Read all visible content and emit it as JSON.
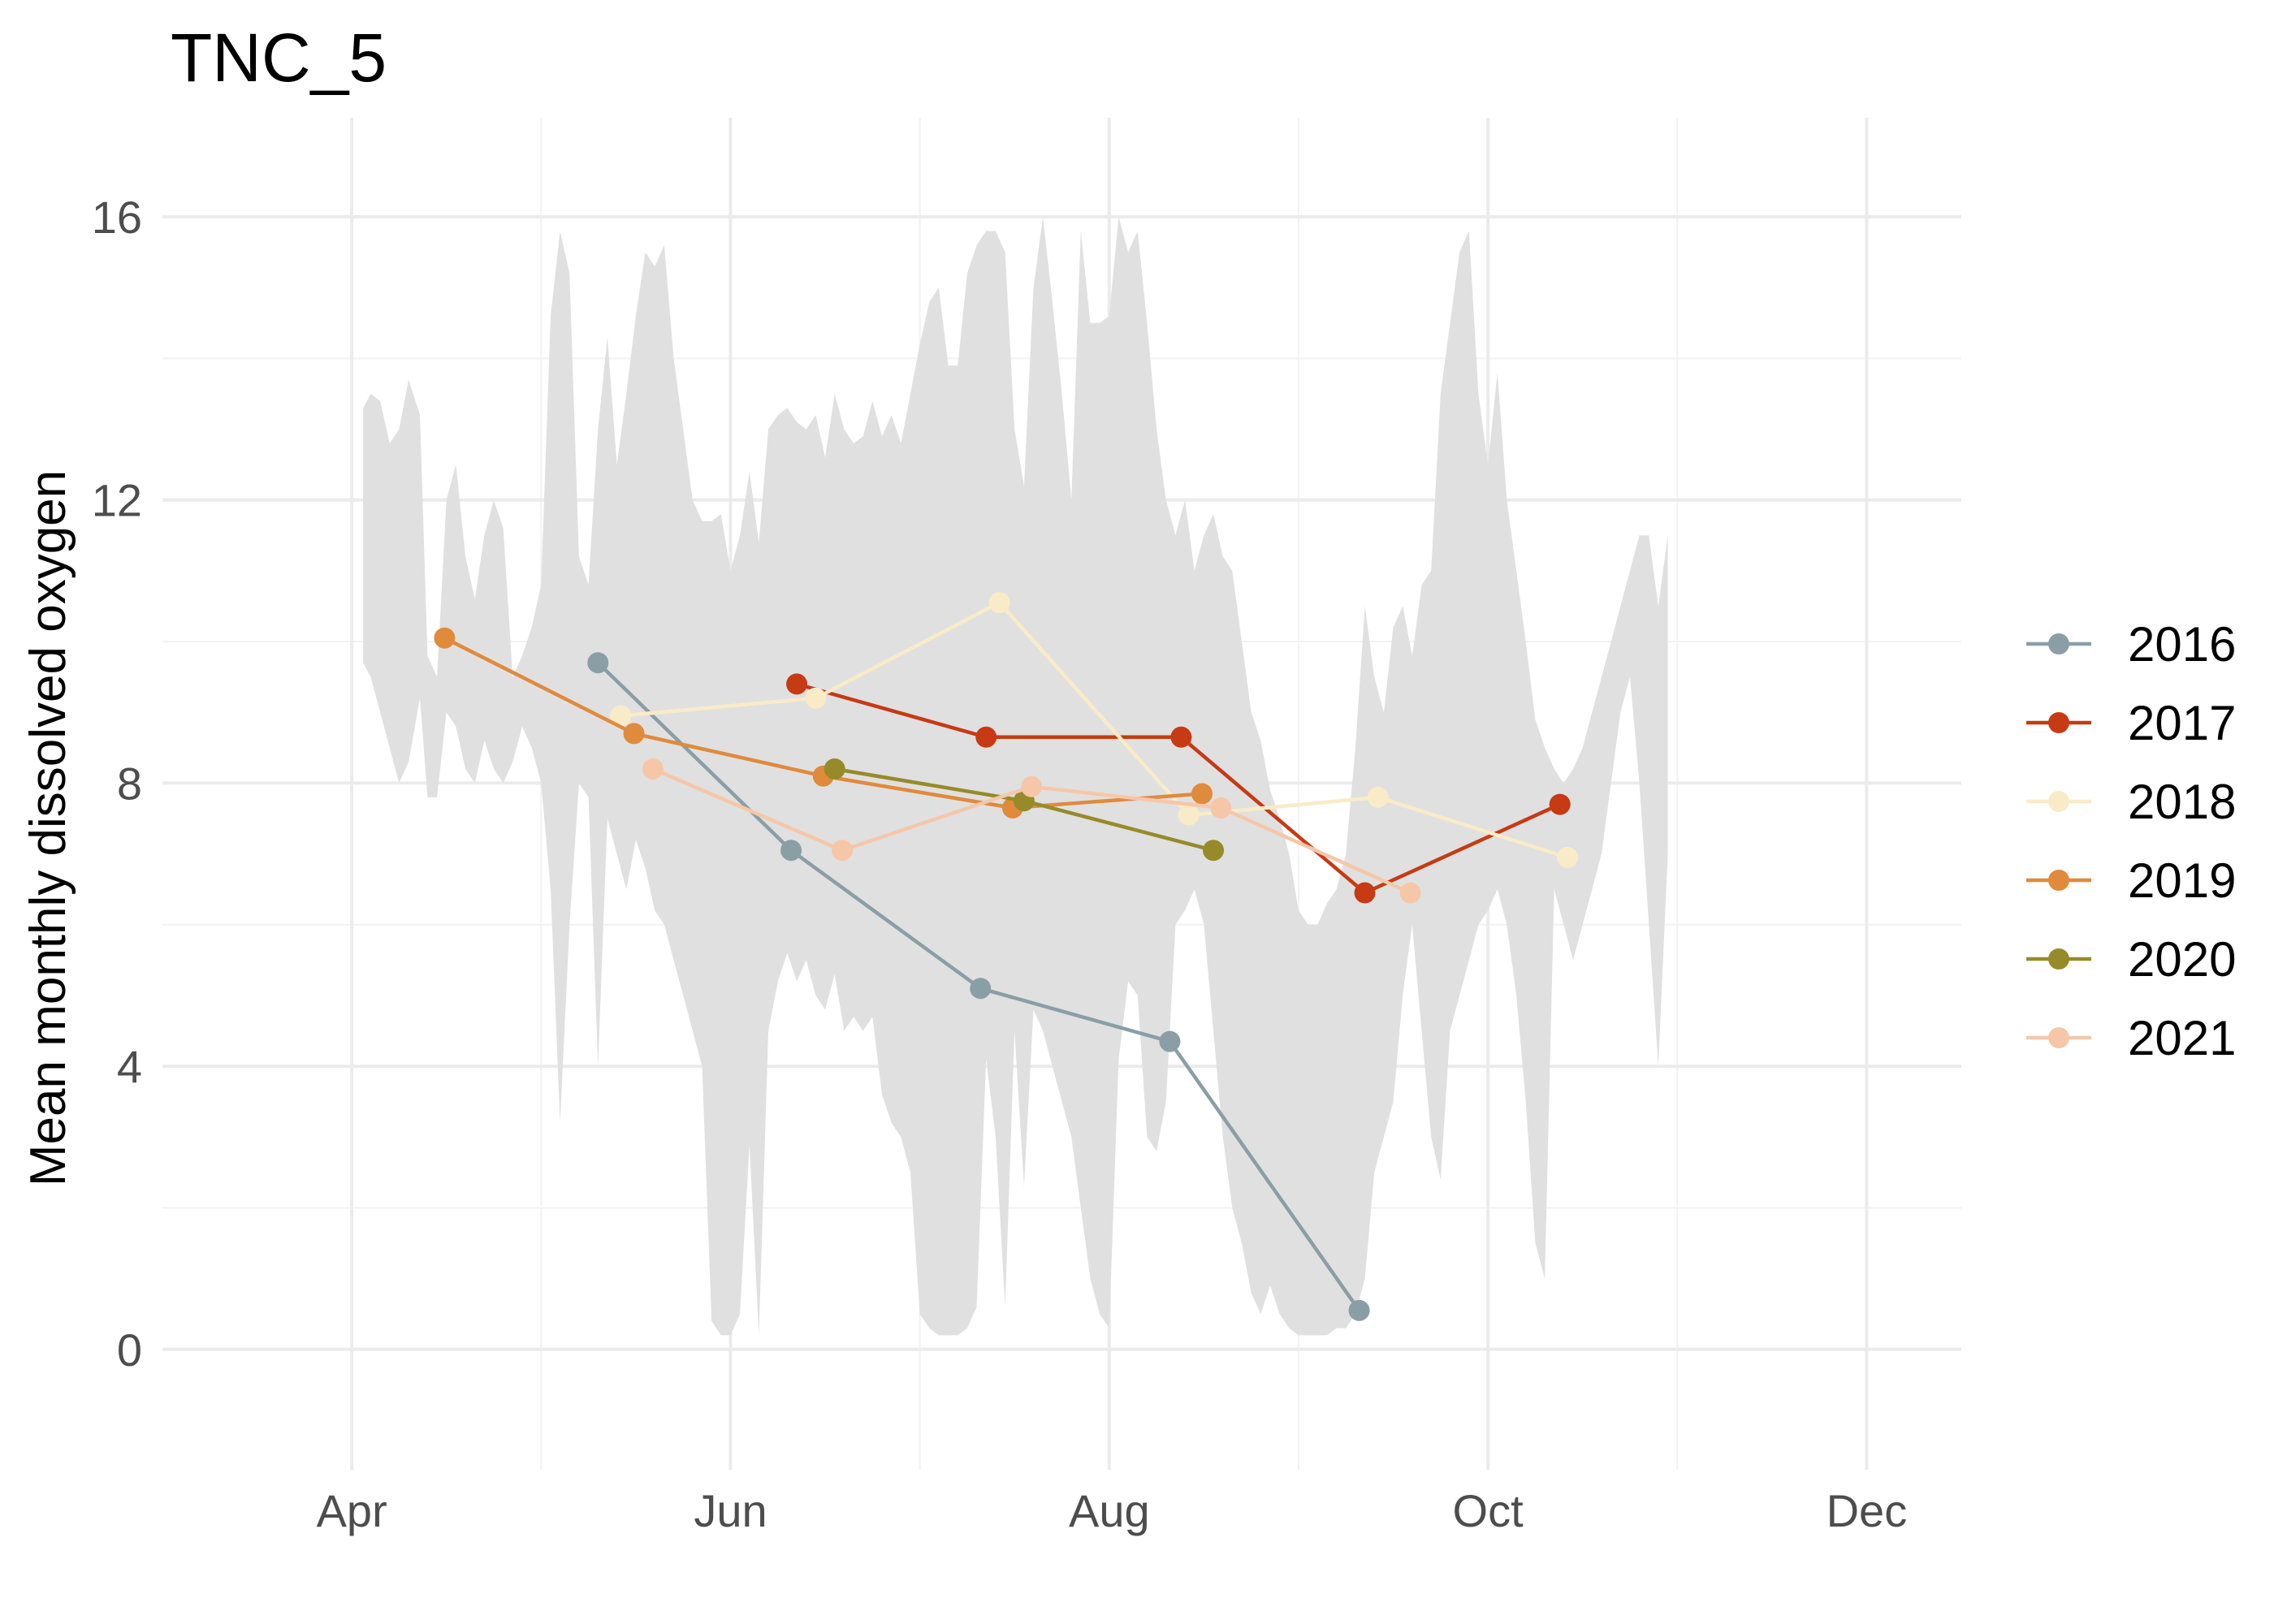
{
  "chart_data": {
    "type": "line",
    "title": "TNC_5",
    "xlabel": "",
    "ylabel": "Mean monthly dissolved oxygen",
    "x_unit": "month",
    "xlim": [
      3.0,
      12.5
    ],
    "ylim": [
      -1.7,
      17.4
    ],
    "x_ticks": [
      {
        "value": 4,
        "label": "Apr"
      },
      {
        "value": 6,
        "label": "Jun"
      },
      {
        "value": 8,
        "label": "Aug"
      },
      {
        "value": 10,
        "label": "Oct"
      },
      {
        "value": 12,
        "label": "Dec"
      }
    ],
    "y_ticks": [
      0,
      4,
      8,
      12,
      16
    ],
    "grid": true,
    "legend_position": "right",
    "band": {
      "color": "#e0e0e0",
      "x": [
        4.06,
        4.1,
        4.15,
        4.2,
        4.25,
        4.3,
        4.36,
        4.4,
        4.45,
        4.5,
        4.55,
        4.6,
        4.65,
        4.7,
        4.75,
        4.8,
        4.85,
        4.9,
        4.95,
        5.0,
        5.05,
        5.1,
        5.15,
        5.2,
        5.25,
        5.3,
        5.35,
        5.4,
        5.45,
        5.5,
        5.55,
        5.6,
        5.65,
        5.7,
        5.75,
        5.8,
        5.85,
        5.9,
        5.95,
        6.0,
        6.05,
        6.1,
        6.15,
        6.2,
        6.25,
        6.3,
        6.35,
        6.4,
        6.45,
        6.5,
        6.55,
        6.6,
        6.65,
        6.7,
        6.75,
        6.8,
        6.85,
        6.9,
        6.95,
        7.0,
        7.05,
        7.1,
        7.15,
        7.2,
        7.25,
        7.3,
        7.35,
        7.4,
        7.45,
        7.5,
        7.55,
        7.6,
        7.65,
        7.7,
        7.75,
        7.8,
        7.85,
        7.9,
        7.95,
        8.0,
        8.05,
        8.1,
        8.15,
        8.2,
        8.25,
        8.3,
        8.35,
        8.4,
        8.45,
        8.5,
        8.55,
        8.6,
        8.65,
        8.7,
        8.75,
        8.8,
        8.85,
        8.9,
        8.95,
        9.0,
        9.05,
        9.1,
        9.15,
        9.2,
        9.25,
        9.3,
        9.35,
        9.4,
        9.45,
        9.5,
        9.55,
        9.6,
        9.65,
        9.7,
        9.75,
        9.8,
        9.85,
        9.9,
        9.95,
        10.0,
        10.05,
        10.1,
        10.15,
        10.2,
        10.25,
        10.3,
        10.35,
        10.4,
        10.45,
        10.5,
        10.55,
        10.6,
        10.65,
        10.7,
        10.75,
        10.8,
        10.85,
        10.9,
        10.95
      ],
      "lower": [
        9.7,
        9.5,
        9.0,
        8.5,
        8.0,
        8.3,
        9.2,
        7.8,
        7.8,
        9.0,
        8.8,
        8.2,
        8.0,
        8.6,
        8.2,
        8.0,
        8.3,
        8.8,
        8.5,
        8.0,
        6.5,
        3.2,
        6.0,
        8.0,
        7.8,
        4.0,
        7.5,
        7.0,
        6.5,
        7.2,
        6.8,
        6.2,
        6.0,
        5.5,
        5.0,
        4.5,
        4.0,
        0.4,
        0.2,
        0.2,
        0.5,
        2.9,
        0.2,
        4.5,
        5.2,
        5.6,
        5.2,
        5.5,
        5.0,
        4.8,
        5.3,
        4.5,
        4.7,
        4.5,
        4.7,
        3.6,
        3.2,
        3.0,
        2.5,
        0.5,
        0.3,
        0.2,
        0.2,
        0.2,
        0.3,
        0.6,
        4.1,
        3.0,
        0.6,
        4.5,
        2.3,
        4.8,
        4.5,
        4.0,
        3.5,
        3.0,
        2.0,
        1.0,
        0.5,
        0.3,
        4.1,
        5.2,
        5.0,
        3.0,
        2.8,
        3.5,
        6.0,
        6.2,
        6.5,
        6.0,
        4.5,
        3.0,
        2.0,
        1.5,
        0.8,
        0.5,
        0.9,
        0.5,
        0.3,
        0.2,
        0.2,
        0.2,
        0.2,
        0.3,
        0.3,
        0.5,
        1.0,
        2.5,
        3.0,
        3.5,
        5.0,
        6.0,
        4.5,
        3.0,
        2.4,
        4.5,
        5.0,
        5.5,
        6.0,
        6.2,
        6.5,
        6.0,
        5.0,
        3.5,
        1.5,
        1.0,
        6.5,
        6.0,
        5.5,
        6.0,
        6.5,
        7.0,
        8.0,
        9.0,
        9.5,
        8.0,
        6.0,
        4.0,
        7.0
      ],
      "upper": [
        13.3,
        13.5,
        13.4,
        12.8,
        13.0,
        13.7,
        13.2,
        9.8,
        9.5,
        12.0,
        12.5,
        11.2,
        10.6,
        11.5,
        12.0,
        11.6,
        9.5,
        9.8,
        10.2,
        10.8,
        14.6,
        15.8,
        15.2,
        11.2,
        10.8,
        13.0,
        14.3,
        12.5,
        13.5,
        14.6,
        15.5,
        15.3,
        15.6,
        14.0,
        13.0,
        12.0,
        11.7,
        11.7,
        11.8,
        11.0,
        11.5,
        12.4,
        11.4,
        13.0,
        13.2,
        13.3,
        13.1,
        13.0,
        13.2,
        12.6,
        13.5,
        13.0,
        12.8,
        12.9,
        13.4,
        12.9,
        13.2,
        12.8,
        13.5,
        14.2,
        14.8,
        15.0,
        13.9,
        13.9,
        15.2,
        15.6,
        15.8,
        15.8,
        15.5,
        13.0,
        12.2,
        15.0,
        16.0,
        14.8,
        13.5,
        12.0,
        15.8,
        14.5,
        14.5,
        14.6,
        16.0,
        15.5,
        15.8,
        14.5,
        13.0,
        12.0,
        11.5,
        12.0,
        11.0,
        11.5,
        11.8,
        11.2,
        11.0,
        10.0,
        9.0,
        8.6,
        7.9,
        7.5,
        7.0,
        6.2,
        6.0,
        6.0,
        6.3,
        6.5,
        7.0,
        8.5,
        10.5,
        9.5,
        9.0,
        10.2,
        10.5,
        9.8,
        10.8,
        11.0,
        13.5,
        14.5,
        15.5,
        15.8,
        13.5,
        12.5,
        13.8,
        12.0,
        11.0,
        10.0,
        8.9,
        8.5,
        8.2,
        8.0,
        8.2,
        8.5,
        9.0,
        9.5,
        10.0,
        10.5,
        11.0,
        11.5,
        11.5,
        10.5,
        11.5
      ],
      "note": ""
    },
    "series": [
      {
        "name": "2016",
        "color": "#8a9ea6",
        "x": [
          5.3,
          6.32,
          7.32,
          8.32,
          9.32
        ],
        "y": [
          9.7,
          7.05,
          5.1,
          4.35,
          0.55
        ]
      },
      {
        "name": "2017",
        "color": "#c63a14",
        "x": [
          6.35,
          7.35,
          8.38,
          9.35,
          10.38
        ],
        "y": [
          9.4,
          8.65,
          8.65,
          6.45,
          7.7
        ]
      },
      {
        "name": "2018",
        "color": "#faebc8",
        "x": [
          5.42,
          6.45,
          7.42,
          8.42,
          9.42,
          10.42
        ],
        "y": [
          8.95,
          9.2,
          10.55,
          7.55,
          7.8,
          6.95
        ]
      },
      {
        "name": "2019",
        "color": "#e08a3c",
        "x": [
          4.49,
          5.49,
          6.49,
          7.49,
          8.49
        ],
        "y": [
          10.05,
          8.7,
          8.1,
          7.65,
          7.85
        ]
      },
      {
        "name": "2020",
        "color": "#978a2a",
        "x": [
          6.55,
          7.55,
          8.55
        ],
        "y": [
          8.2,
          7.75,
          7.05
        ]
      },
      {
        "name": "2021",
        "color": "#f5c7a8",
        "x": [
          5.59,
          6.59,
          7.59,
          8.59,
          9.59
        ],
        "y": [
          8.2,
          7.05,
          7.95,
          7.65,
          6.45
        ]
      }
    ]
  }
}
